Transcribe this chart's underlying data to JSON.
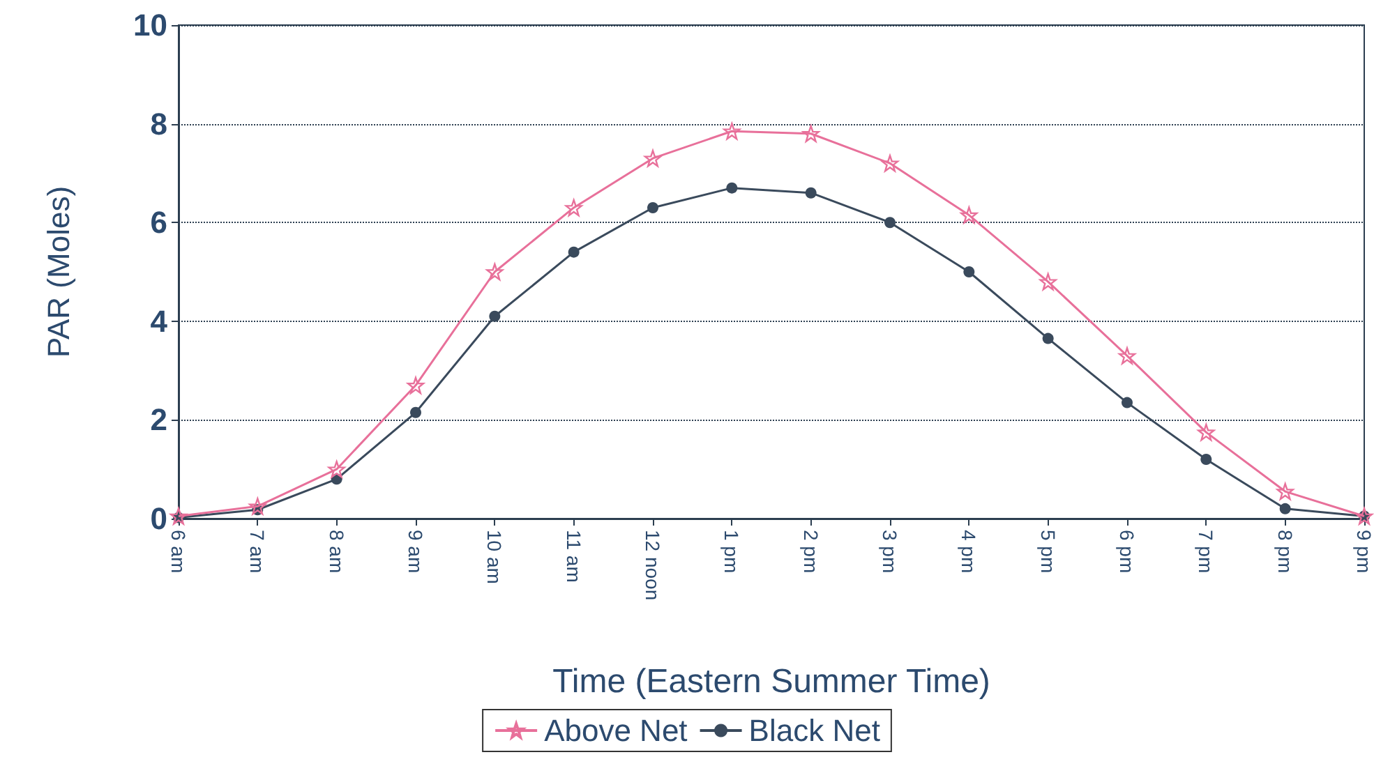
{
  "chart_data": {
    "type": "line",
    "xlabel": "Time (Eastern Summer Time)",
    "ylabel": "PAR (Moles)",
    "categories": [
      "6 am",
      "7 am",
      "8 am",
      "9 am",
      "10 am",
      "11 am",
      "12 noon",
      "1 pm",
      "2 pm",
      "3 pm",
      "4 pm",
      "5 pm",
      "6 pm",
      "7 pm",
      "8 pm",
      "9 pm"
    ],
    "series": [
      {
        "name": "Above Net",
        "color": "#e8709a",
        "marker": "star",
        "values": [
          0.05,
          0.25,
          1.0,
          2.7,
          5.0,
          6.3,
          7.3,
          7.85,
          7.8,
          7.2,
          6.15,
          4.8,
          3.3,
          1.75,
          0.55,
          0.05
        ]
      },
      {
        "name": "Black Net",
        "color": "#3a4a5c",
        "marker": "circle",
        "values": [
          0.02,
          0.18,
          0.8,
          2.15,
          4.1,
          5.4,
          6.3,
          6.7,
          6.6,
          6.0,
          5.0,
          3.65,
          2.35,
          1.2,
          0.2,
          0.05
        ]
      }
    ],
    "ylim": [
      0,
      10
    ],
    "yticks": [
      0,
      2,
      4,
      6,
      8,
      10
    ],
    "grid": "y",
    "legend": "bottom"
  }
}
